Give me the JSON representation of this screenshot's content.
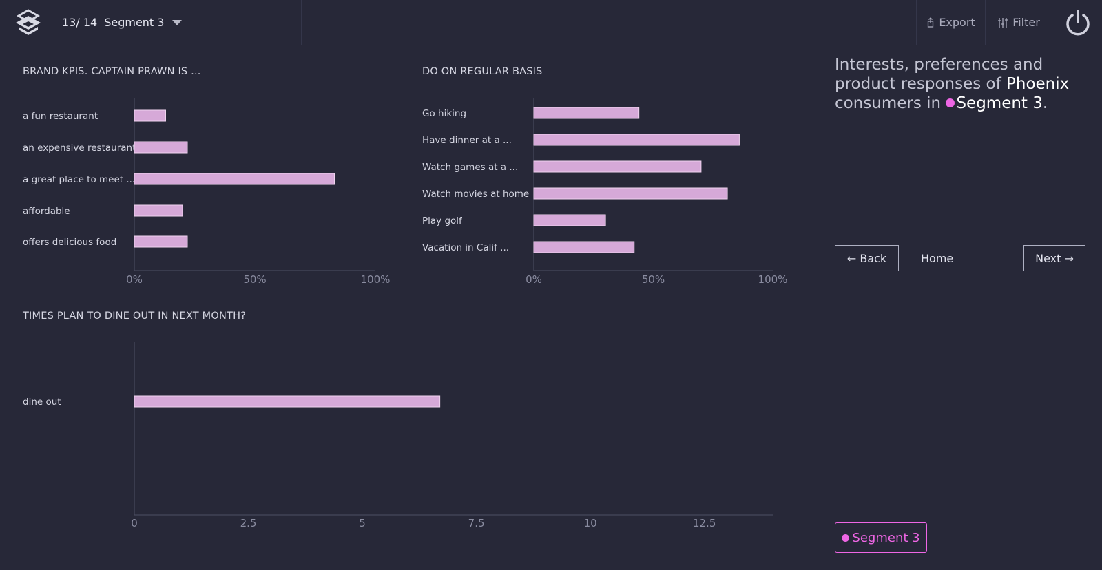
{
  "header": {
    "counter": "13/ 14",
    "segment_label": "Segment 3",
    "export_label": "Export",
    "filter_label": "Filter"
  },
  "description": {
    "line_prefix": "Interests, preferences and product responses of",
    "city": "Phoenix",
    "middle": "consumers in",
    "segment": "Segment 3",
    "suffix": "."
  },
  "nav": {
    "back_label": "← Back",
    "home_label": "Home",
    "next_label": "Next →"
  },
  "segment_tag": "Segment 3",
  "colors": {
    "bar_fill": "#d6a9d8",
    "bar_stroke": "#f0d4ef",
    "accent": "#ee66e4",
    "axis": "#4d4f63",
    "tick": "#8a8ca0"
  },
  "chart_data": [
    {
      "type": "bar",
      "orientation": "horizontal",
      "title": "BRAND KPIS. CAPTAIN PRAWN IS ...",
      "categories": [
        "a fun restaurant",
        "an expensive restaurant",
        "a great place to meet ...",
        "affordable",
        "offers delicious food"
      ],
      "values": [
        13,
        22,
        83,
        20,
        22
      ],
      "xlim": [
        0,
        100
      ],
      "xticks": [
        "0%",
        "50%",
        "100%"
      ]
    },
    {
      "type": "bar",
      "orientation": "horizontal",
      "title": "DO ON REGULAR BASIS",
      "categories": [
        "Go hiking",
        "Have dinner at a ...",
        "Watch games at a ...",
        "Watch movies at home",
        "Play golf",
        "Vacation in Calif ..."
      ],
      "values": [
        44,
        86,
        70,
        81,
        30,
        42
      ],
      "xlim": [
        0,
        100
      ],
      "xticks": [
        "0%",
        "50%",
        "100%"
      ]
    },
    {
      "type": "bar",
      "orientation": "horizontal",
      "title": "TIMES PLAN TO DINE OUT IN NEXT MONTH?",
      "categories": [
        "dine out"
      ],
      "values": [
        6.7
      ],
      "xlim": [
        0,
        14
      ],
      "xticks": [
        "0",
        "2.5",
        "5",
        "7.5",
        "10",
        "12.5"
      ]
    }
  ]
}
